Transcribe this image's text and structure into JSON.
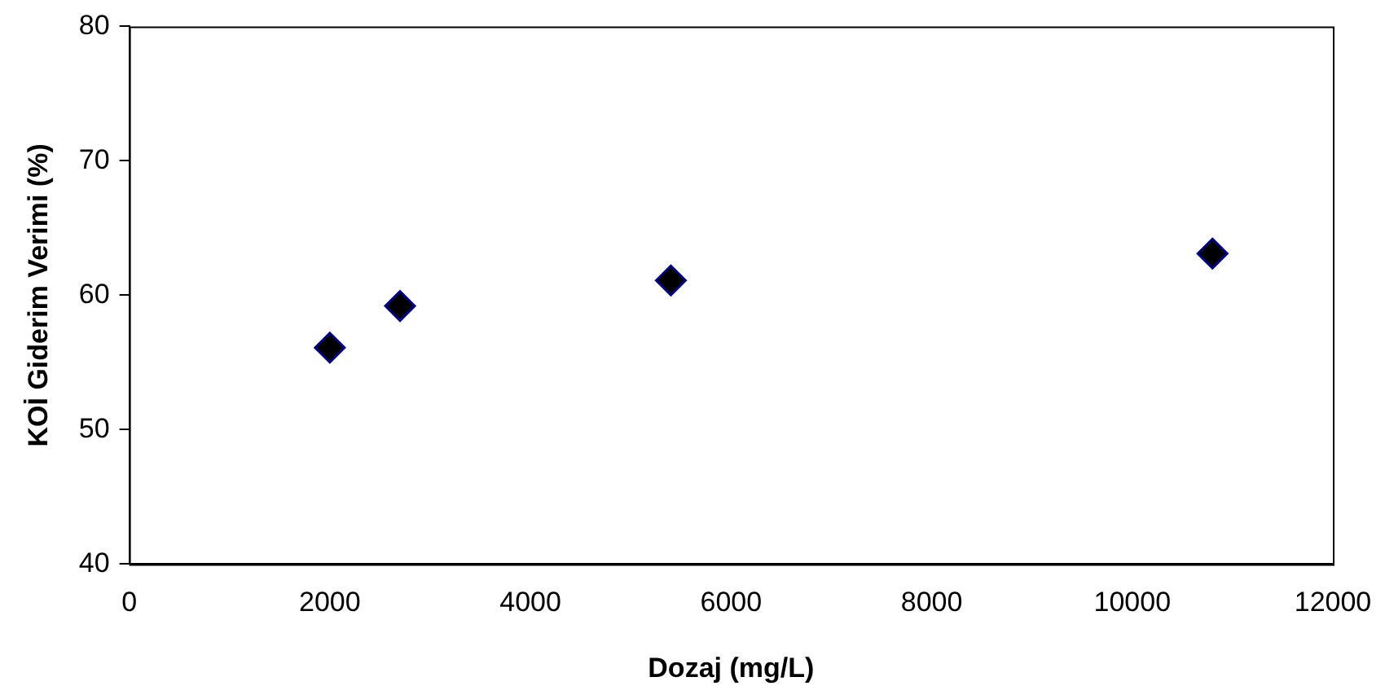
{
  "chart_data": {
    "type": "scatter",
    "xlabel": "Dozaj (mg/L)",
    "ylabel": "KOİ Giderim Verimi (%)",
    "x": [
      2000,
      2700,
      5400,
      10800
    ],
    "series": [
      {
        "color": "#000000",
        "values": [
          56.1,
          59.2,
          61.1,
          63.1
        ]
      }
    ],
    "xlim": [
      0,
      12000
    ],
    "xticks": [
      0,
      2000,
      4000,
      6000,
      8000,
      10000,
      12000
    ],
    "ylim": [
      40,
      80
    ],
    "yticks": [
      40,
      50,
      60,
      70,
      80
    ],
    "grid": false,
    "legend": false,
    "marker": "diamond"
  }
}
